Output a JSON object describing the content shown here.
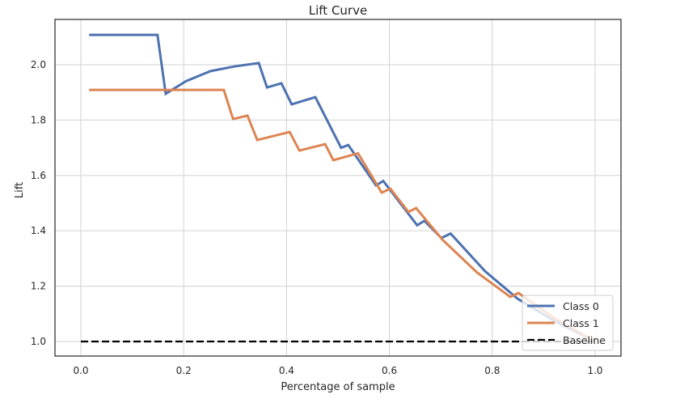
{
  "chart_data": {
    "type": "line",
    "title": "Lift Curve",
    "xlabel": "Percentage of sample",
    "ylabel": "Lift",
    "xlim": [
      -0.05,
      1.03
    ],
    "ylim": [
      0.95,
      2.16
    ],
    "xticks": [
      "0.0",
      "0.2",
      "0.4",
      "0.6",
      "0.8",
      "1.0"
    ],
    "yticks": [
      "1.0",
      "1.2",
      "1.4",
      "1.6",
      "1.8",
      "2.0"
    ],
    "grid": true,
    "legend_position": "bottom-right",
    "series": [
      {
        "name": "Class 0",
        "color": "#4c72b0",
        "style": "solid",
        "x": [
          0.016,
          0.149,
          0.165,
          0.204,
          0.252,
          0.299,
          0.346,
          0.362,
          0.39,
          0.41,
          0.456,
          0.506,
          0.52,
          0.574,
          0.588,
          0.654,
          0.668,
          0.701,
          0.719,
          0.786,
          0.849,
          0.92,
          1.0
        ],
        "y": [
          2.108,
          2.108,
          1.895,
          1.94,
          1.977,
          1.994,
          2.006,
          1.918,
          1.933,
          1.857,
          1.883,
          1.7,
          1.71,
          1.564,
          1.58,
          1.42,
          1.436,
          1.374,
          1.39,
          1.254,
          1.155,
          1.075,
          1.0
        ]
      },
      {
        "name": "Class 1",
        "color": "#dd8452",
        "style": "solid",
        "x": [
          0.016,
          0.278,
          0.296,
          0.324,
          0.343,
          0.406,
          0.425,
          0.475,
          0.491,
          0.539,
          0.585,
          0.602,
          0.637,
          0.652,
          0.703,
          0.77,
          0.835,
          0.851,
          0.92,
          1.0
        ],
        "y": [
          1.909,
          1.909,
          1.804,
          1.816,
          1.728,
          1.757,
          1.69,
          1.713,
          1.655,
          1.68,
          1.538,
          1.552,
          1.468,
          1.482,
          1.368,
          1.25,
          1.161,
          1.175,
          1.085,
          1.0
        ]
      },
      {
        "name": "Baseline",
        "color": "#000000",
        "style": "dashed",
        "x": [
          0,
          1
        ],
        "y": [
          1.0,
          1.0
        ]
      }
    ]
  }
}
